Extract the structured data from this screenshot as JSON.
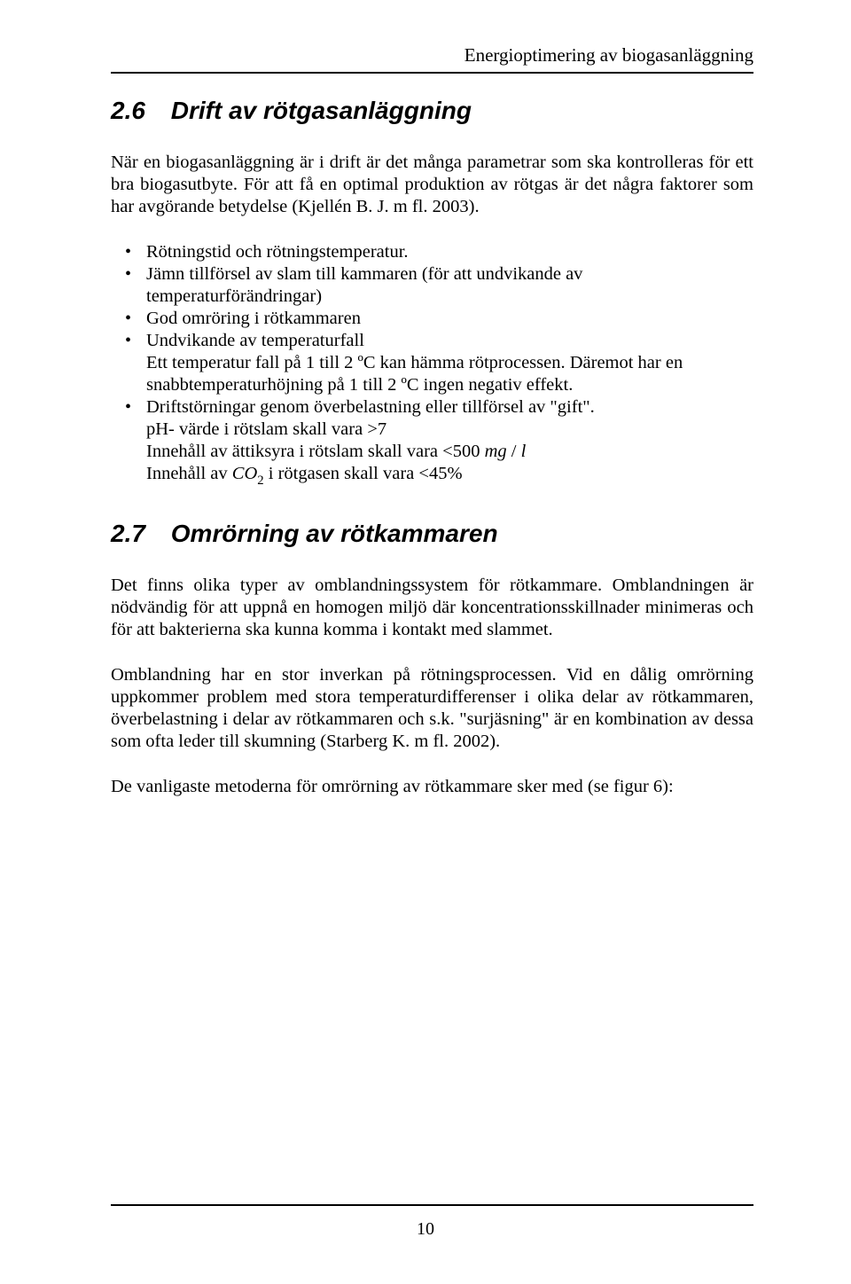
{
  "header": {
    "running_title": "Energioptimering av biogasanläggning"
  },
  "section_26": {
    "number": "2.6",
    "title": "Drift av rötgasanläggning",
    "para1": "När en biogasanläggning är i drift är det många parametrar som ska kontrolleras för ett bra biogasutbyte. För att få en optimal produktion av rötgas är det några faktorer som har avgörande betydelse (Kjellén B. J. m fl. 2003).",
    "bullets": {
      "b1": "Rötningstid och rötningstemperatur.",
      "b2": "Jämn tillförsel av slam till kammaren (för att undvikande av temperaturförändringar)",
      "b3": "God omröring i rötkammaren",
      "b4": "Undvikande av temperaturfall",
      "b4_sub1": "Ett temperatur fall på 1 till 2 ºC kan hämma rötprocessen. Däremot har en snabbtemperaturhöjning på 1 till 2 ºC ingen negativ effekt.",
      "b5": "Driftstörningar genom överbelastning eller tillförsel av \"gift\".",
      "b5_sub1": "pH- värde i rötslam skall vara >7",
      "b5_sub2a": "Innehåll av ättiksyra i rötslam skall vara <500 ",
      "b5_sub2_unit1": "mg",
      "b5_sub2_slash": " / ",
      "b5_sub2_unit2": "l",
      "b5_sub3a": "Innehåll av ",
      "b5_sub3_co": "CO",
      "b5_sub3_two": "2",
      "b5_sub3b": " i rötgasen skall vara <45%"
    }
  },
  "section_27": {
    "number": "2.7",
    "title": "Omrörning av rötkammaren",
    "para1": "Det finns olika typer av omblandningssystem för rötkammare. Omblandningen är nödvändig för att uppnå en homogen miljö där koncentrationsskillnader minimeras och för att bakterierna ska kunna komma i kontakt med slammet.",
    "para2": "Omblandning har en stor inverkan på rötningsprocessen. Vid en dålig omrörning uppkommer problem med stora temperaturdifferenser i olika delar av rötkammaren, överbelastning i delar av rötkammaren och s.k. \"surjäsning\" är en kombination av dessa som ofta leder till skumning (Starberg K. m fl. 2002).",
    "para3": "De vanligaste metoderna för omrörning av rötkammare sker med (se figur 6):"
  },
  "footer": {
    "page_number": "10"
  }
}
